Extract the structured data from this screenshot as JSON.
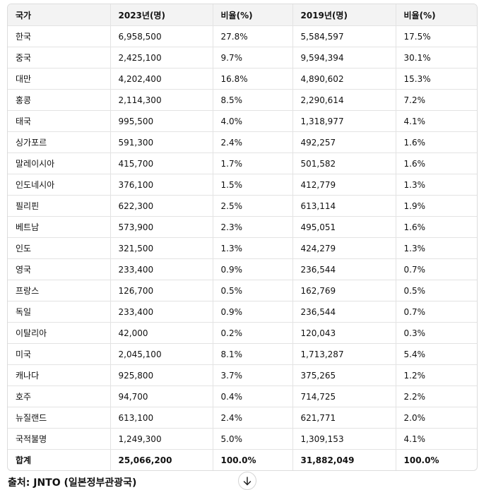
{
  "table": {
    "headers": [
      "국가",
      "2023년(명)",
      "비율(%)",
      "2019년(명)",
      "비율(%)"
    ],
    "rows": [
      [
        "한국",
        "6,958,500",
        "27.8%",
        "5,584,597",
        "17.5%"
      ],
      [
        "중국",
        "2,425,100",
        "9.7%",
        "9,594,394",
        "30.1%"
      ],
      [
        "대만",
        "4,202,400",
        "16.8%",
        "4,890,602",
        "15.3%"
      ],
      [
        "홍콩",
        "2,114,300",
        "8.5%",
        "2,290,614",
        "7.2%"
      ],
      [
        "태국",
        "995,500",
        "4.0%",
        "1,318,977",
        "4.1%"
      ],
      [
        "싱가포르",
        "591,300",
        "2.4%",
        "492,257",
        "1.6%"
      ],
      [
        "말레이시아",
        "415,700",
        "1.7%",
        "501,582",
        "1.6%"
      ],
      [
        "인도네시아",
        "376,100",
        "1.5%",
        "412,779",
        "1.3%"
      ],
      [
        "필리핀",
        "622,300",
        "2.5%",
        "613,114",
        "1.9%"
      ],
      [
        "베트남",
        "573,900",
        "2.3%",
        "495,051",
        "1.6%"
      ],
      [
        "인도",
        "321,500",
        "1.3%",
        "424,279",
        "1.3%"
      ],
      [
        "영국",
        "233,400",
        "0.9%",
        "236,544",
        "0.7%"
      ],
      [
        "프랑스",
        "126,700",
        "0.5%",
        "162,769",
        "0.5%"
      ],
      [
        "독일",
        "233,400",
        "0.9%",
        "236,544",
        "0.7%"
      ],
      [
        "이탈리아",
        "42,000",
        "0.2%",
        "120,043",
        "0.3%"
      ],
      [
        "미국",
        "2,045,100",
        "8.1%",
        "1,713,287",
        "5.4%"
      ],
      [
        "캐나다",
        "925,800",
        "3.7%",
        "375,265",
        "1.2%"
      ],
      [
        "호주",
        "94,700",
        "0.4%",
        "714,725",
        "2.2%"
      ],
      [
        "뉴질랜드",
        "613,100",
        "2.4%",
        "621,771",
        "2.0%"
      ],
      [
        "국적불명",
        "1,249,300",
        "5.0%",
        "1,309,153",
        "4.1%"
      ]
    ],
    "total": [
      "합계",
      "25,066,200",
      "100.0%",
      "31,882,049",
      "100.0%"
    ]
  },
  "source_text": "출처: JNTO (일본정부관광국)",
  "scroll_button": {
    "icon": "arrow-down-icon"
  }
}
